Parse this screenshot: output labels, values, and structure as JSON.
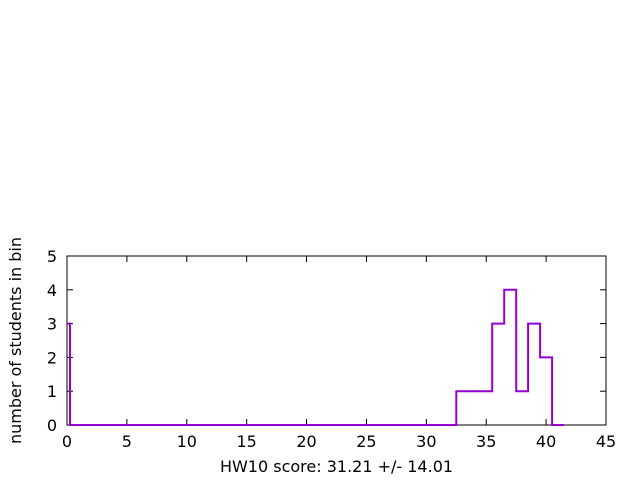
{
  "chart_data": {
    "type": "histogram",
    "xlabel": "HW10 score: 31.21 +/- 14.01",
    "ylabel": "number of students in bin",
    "xlim": [
      0,
      45
    ],
    "ylim": [
      0,
      5
    ],
    "x_ticks": [
      0,
      5,
      10,
      15,
      20,
      25,
      30,
      35,
      40,
      45
    ],
    "y_ticks": [
      0,
      1,
      2,
      3,
      4,
      5
    ],
    "grid": false,
    "line_color": "#9400d3",
    "steps": [
      {
        "x0": 0.0,
        "x1": 0.25,
        "count": 3
      },
      {
        "x0": 0.25,
        "x1": 32.5,
        "count": 0
      },
      {
        "x0": 32.5,
        "x1": 35.5,
        "count": 1
      },
      {
        "x0": 35.5,
        "x1": 36.5,
        "count": 3
      },
      {
        "x0": 36.5,
        "x1": 37.5,
        "count": 4
      },
      {
        "x0": 37.5,
        "x1": 38.5,
        "count": 1
      },
      {
        "x0": 38.5,
        "x1": 39.5,
        "count": 3
      },
      {
        "x0": 39.5,
        "x1": 40.5,
        "count": 2
      },
      {
        "x0": 40.5,
        "x1": 41.5,
        "count": 0
      }
    ]
  }
}
